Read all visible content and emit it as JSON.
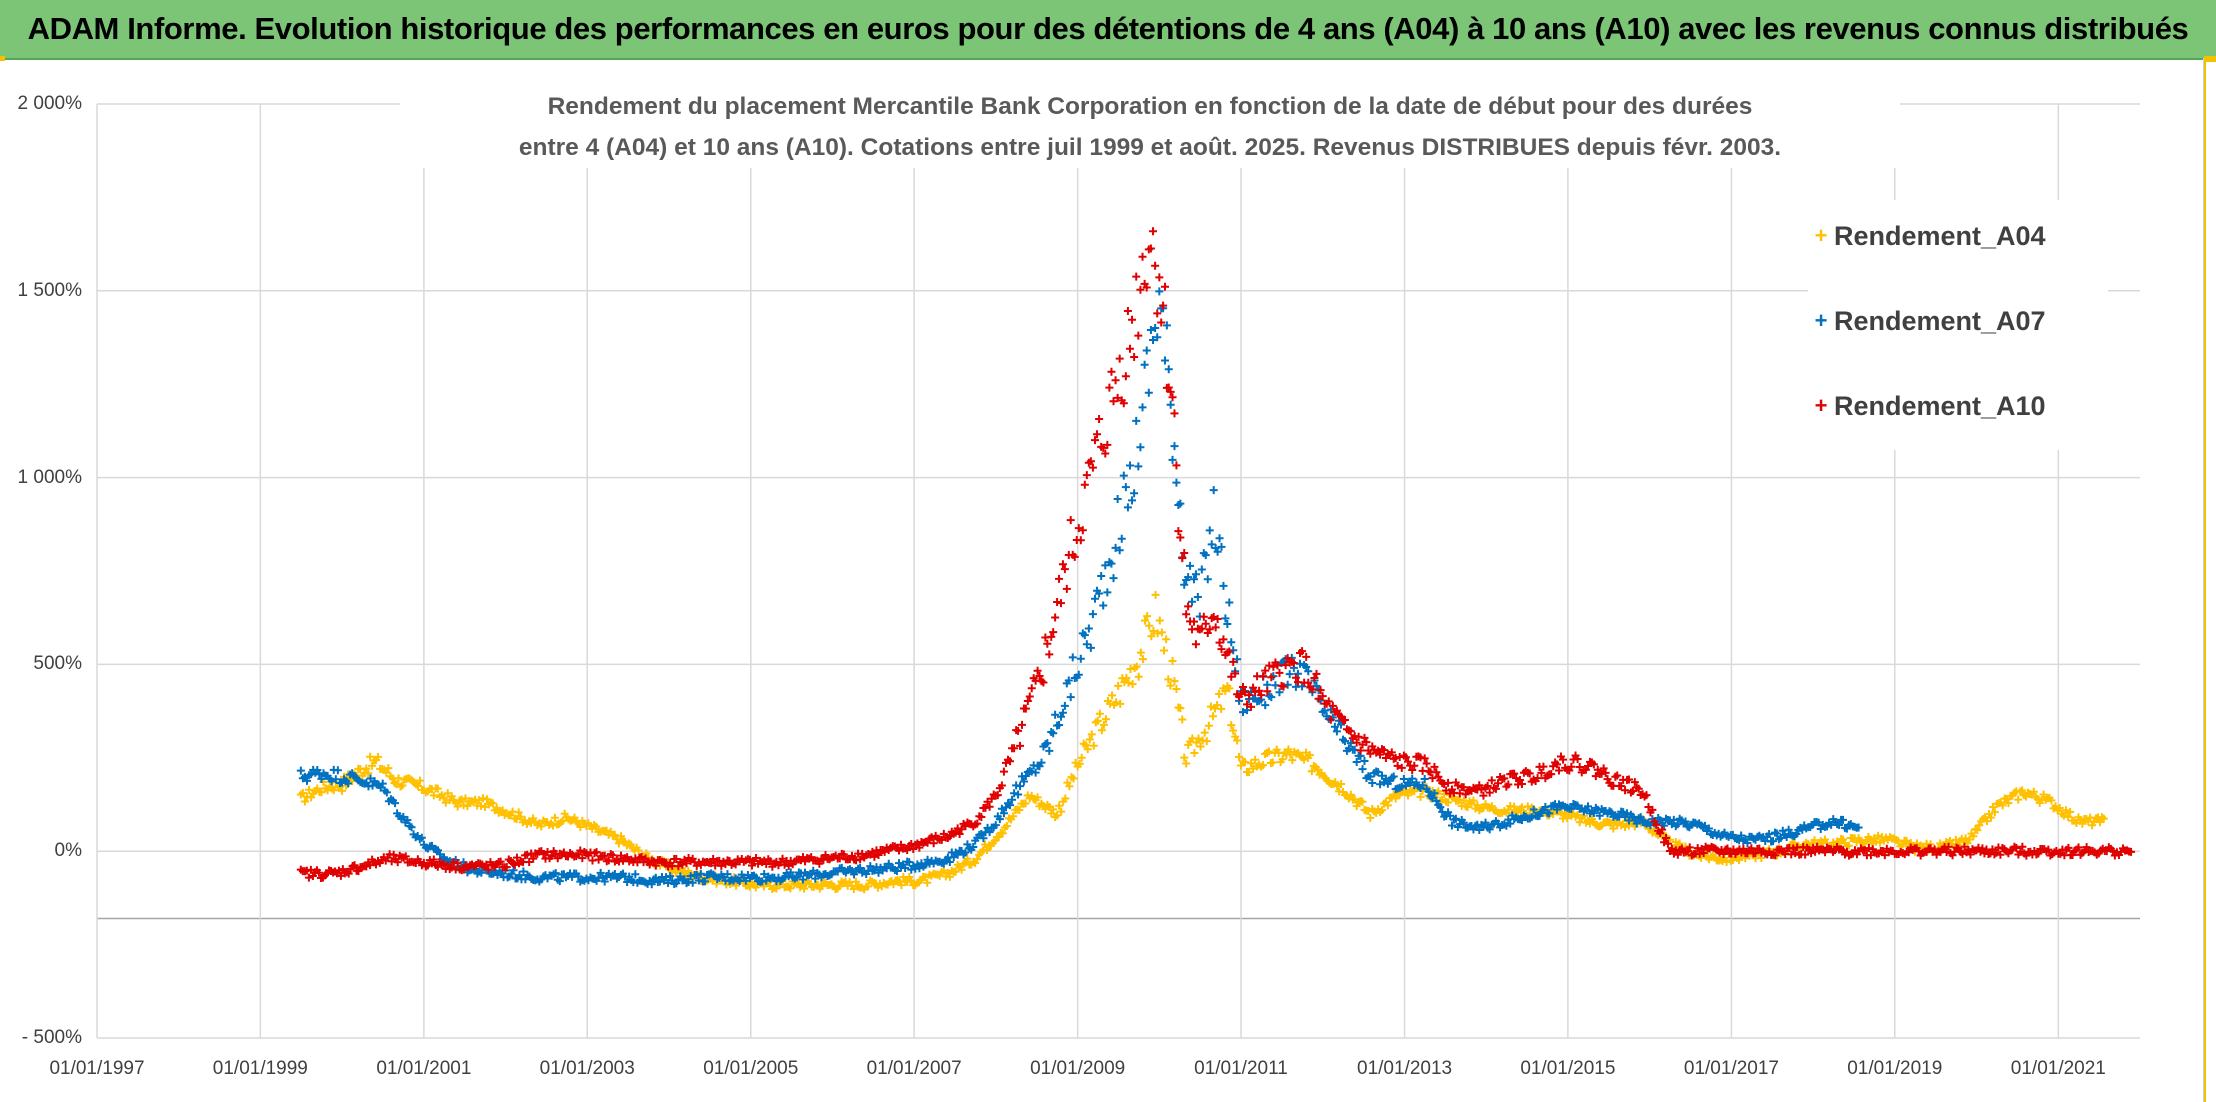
{
  "banner": {
    "title": "ADAM Informe. Evolution historique des performances en euros pour des détentions de 4 ans (A04) à 10 ans (A10) avec les revenus connus distribués"
  },
  "colors": {
    "banner_bg": "#7cc576",
    "a04": "#ffc000",
    "a07": "#0070c0",
    "a10": "#e00000"
  },
  "chart_data": {
    "type": "scatter",
    "title_line1": "Rendement du placement Mercantile Bank Corporation en fonction de la date de début pour des durées",
    "title_line2": "entre 4 (A04) et 10 ans (A10). Cotations entre juil 1999 et août. 2025. Revenus DISTRIBUES depuis févr. 2003.",
    "marker": "+",
    "x_tick_labels": [
      "01/01/1997",
      "01/01/1999",
      "01/01/2001",
      "01/01/2003",
      "01/01/2005",
      "01/01/2007",
      "01/01/2009",
      "01/01/2011",
      "01/01/2013",
      "01/01/2015",
      "01/01/2017",
      "01/01/2019",
      "01/01/2021"
    ],
    "y_tick_labels": [
      "2 000%",
      "1 500%",
      "1 000%",
      "500%",
      "0%",
      "- 500%"
    ],
    "xlim": [
      "1997-01-01",
      "2022-01-01"
    ],
    "ylim": [
      -500,
      2000
    ],
    "grid": true,
    "legend_position": "right",
    "series": [
      {
        "name": "Rendement_A04",
        "color": "#ffc000",
        "points": [
          [
            "1999-07-01",
            140
          ],
          [
            "1999-10-01",
            170
          ],
          [
            "2000-01-01",
            180
          ],
          [
            "2000-04-01",
            220
          ],
          [
            "2000-06-01",
            240
          ],
          [
            "2000-09-01",
            190
          ],
          [
            "2001-01-01",
            170
          ],
          [
            "2001-06-01",
            130
          ],
          [
            "2001-10-01",
            130
          ],
          [
            "2002-02-01",
            100
          ],
          [
            "2002-06-01",
            70
          ],
          [
            "2002-10-01",
            90
          ],
          [
            "2003-02-01",
            60
          ],
          [
            "2003-06-01",
            30
          ],
          [
            "2003-10-01",
            -20
          ],
          [
            "2004-02-01",
            -50
          ],
          [
            "2004-06-01",
            -70
          ],
          [
            "2004-10-01",
            -80
          ],
          [
            "2005-02-01",
            -90
          ],
          [
            "2005-06-01",
            -90
          ],
          [
            "2005-10-01",
            -90
          ],
          [
            "2006-02-01",
            -90
          ],
          [
            "2006-06-01",
            -90
          ],
          [
            "2006-10-01",
            -80
          ],
          [
            "2007-02-01",
            -80
          ],
          [
            "2007-06-01",
            -60
          ],
          [
            "2007-10-01",
            -20
          ],
          [
            "2008-02-01",
            60
          ],
          [
            "2008-06-01",
            150
          ],
          [
            "2008-10-01",
            100
          ],
          [
            "2009-01-01",
            230
          ],
          [
            "2009-04-01",
            330
          ],
          [
            "2009-07-01",
            420
          ],
          [
            "2009-10-01",
            520
          ],
          [
            "2009-12-15",
            640
          ],
          [
            "2010-03-01",
            470
          ],
          [
            "2010-05-01",
            250
          ],
          [
            "2010-08-01",
            330
          ],
          [
            "2010-11-01",
            430
          ],
          [
            "2011-01-01",
            220
          ],
          [
            "2011-04-01",
            240
          ],
          [
            "2011-08-01",
            260
          ],
          [
            "2011-12-01",
            230
          ],
          [
            "2012-04-01",
            170
          ],
          [
            "2012-08-01",
            100
          ],
          [
            "2012-12-01",
            150
          ],
          [
            "2013-04-01",
            160
          ],
          [
            "2013-08-01",
            140
          ],
          [
            "2013-12-01",
            120
          ],
          [
            "2014-04-01",
            110
          ],
          [
            "2014-08-01",
            110
          ],
          [
            "2014-12-01",
            100
          ],
          [
            "2015-04-01",
            80
          ],
          [
            "2015-08-01",
            70
          ],
          [
            "2015-12-01",
            80
          ],
          [
            "2016-04-01",
            20
          ],
          [
            "2016-08-01",
            -10
          ],
          [
            "2016-12-01",
            -20
          ],
          [
            "2017-04-01",
            -10
          ],
          [
            "2017-08-01",
            0
          ],
          [
            "2017-12-01",
            20
          ],
          [
            "2018-04-01",
            20
          ],
          [
            "2018-08-01",
            30
          ],
          [
            "2018-12-01",
            30
          ],
          [
            "2019-04-01",
            10
          ],
          [
            "2019-08-01",
            10
          ],
          [
            "2019-12-01",
            30
          ],
          [
            "2020-04-01",
            120
          ],
          [
            "2020-08-01",
            160
          ],
          [
            "2020-12-01",
            130
          ],
          [
            "2021-04-01",
            80
          ],
          [
            "2021-08-01",
            80
          ]
        ]
      },
      {
        "name": "Rendement_A07",
        "color": "#0070c0",
        "points": [
          [
            "1999-07-01",
            200
          ],
          [
            "1999-10-01",
            210
          ],
          [
            "2000-01-01",
            200
          ],
          [
            "2000-04-01",
            190
          ],
          [
            "2000-07-01",
            170
          ],
          [
            "2000-10-01",
            90
          ],
          [
            "2001-01-01",
            20
          ],
          [
            "2001-04-01",
            -20
          ],
          [
            "2001-08-01",
            -50
          ],
          [
            "2002-01-01",
            -60
          ],
          [
            "2002-06-01",
            -70
          ],
          [
            "2002-12-01",
            -70
          ],
          [
            "2003-06-01",
            -70
          ],
          [
            "2003-12-01",
            -80
          ],
          [
            "2004-06-01",
            -70
          ],
          [
            "2004-12-01",
            -70
          ],
          [
            "2005-06-01",
            -70
          ],
          [
            "2005-12-01",
            -60
          ],
          [
            "2006-06-01",
            -50
          ],
          [
            "2006-12-01",
            -40
          ],
          [
            "2007-06-01",
            -20
          ],
          [
            "2007-10-01",
            20
          ],
          [
            "2008-01-01",
            80
          ],
          [
            "2008-04-01",
            160
          ],
          [
            "2008-08-01",
            250
          ],
          [
            "2008-12-01",
            450
          ],
          [
            "2009-03-01",
            600
          ],
          [
            "2009-06-01",
            800
          ],
          [
            "2009-09-01",
            1000
          ],
          [
            "2009-11-15",
            1300
          ],
          [
            "2010-01-01",
            1500
          ],
          [
            "2010-03-01",
            1150
          ],
          [
            "2010-05-01",
            750
          ],
          [
            "2010-07-01",
            650
          ],
          [
            "2010-09-01",
            900
          ],
          [
            "2010-11-01",
            650
          ],
          [
            "2011-01-01",
            400
          ],
          [
            "2011-04-01",
            420
          ],
          [
            "2011-07-01",
            470
          ],
          [
            "2011-10-01",
            480
          ],
          [
            "2012-01-01",
            380
          ],
          [
            "2012-04-01",
            300
          ],
          [
            "2012-08-01",
            200
          ],
          [
            "2012-12-01",
            180
          ],
          [
            "2013-04-01",
            180
          ],
          [
            "2013-08-01",
            80
          ],
          [
            "2013-12-01",
            60
          ],
          [
            "2014-04-01",
            80
          ],
          [
            "2014-08-01",
            100
          ],
          [
            "2014-12-01",
            120
          ],
          [
            "2015-04-01",
            110
          ],
          [
            "2015-08-01",
            100
          ],
          [
            "2015-12-01",
            80
          ],
          [
            "2016-04-01",
            80
          ],
          [
            "2016-08-01",
            70
          ],
          [
            "2016-12-01",
            40
          ],
          [
            "2017-04-01",
            30
          ],
          [
            "2017-08-01",
            40
          ],
          [
            "2017-12-01",
            60
          ],
          [
            "2018-04-01",
            80
          ],
          [
            "2018-08-01",
            60
          ]
        ]
      },
      {
        "name": "Rendement_A10",
        "color": "#e00000",
        "points": [
          [
            "1999-07-01",
            -60
          ],
          [
            "1999-12-01",
            -60
          ],
          [
            "2000-04-01",
            -40
          ],
          [
            "2000-08-01",
            -20
          ],
          [
            "2001-01-01",
            -30
          ],
          [
            "2001-06-01",
            -40
          ],
          [
            "2001-12-01",
            -40
          ],
          [
            "2002-06-01",
            -10
          ],
          [
            "2002-12-01",
            -10
          ],
          [
            "2003-06-01",
            -20
          ],
          [
            "2003-12-01",
            -30
          ],
          [
            "2004-06-01",
            -30
          ],
          [
            "2004-12-01",
            -30
          ],
          [
            "2005-06-01",
            -30
          ],
          [
            "2005-12-01",
            -20
          ],
          [
            "2006-06-01",
            -10
          ],
          [
            "2006-12-01",
            10
          ],
          [
            "2007-06-01",
            40
          ],
          [
            "2007-10-01",
            80
          ],
          [
            "2008-01-01",
            150
          ],
          [
            "2008-04-01",
            280
          ],
          [
            "2008-08-01",
            500
          ],
          [
            "2008-12-01",
            800
          ],
          [
            "2009-03-01",
            1000
          ],
          [
            "2009-06-01",
            1200
          ],
          [
            "2009-09-01",
            1400
          ],
          [
            "2009-11-15",
            1650
          ],
          [
            "2010-01-01",
            1550
          ],
          [
            "2010-03-01",
            1200
          ],
          [
            "2010-05-01",
            650
          ],
          [
            "2010-07-01",
            550
          ],
          [
            "2010-09-01",
            650
          ],
          [
            "2010-11-01",
            520
          ],
          [
            "2011-01-01",
            400
          ],
          [
            "2011-04-01",
            440
          ],
          [
            "2011-07-01",
            480
          ],
          [
            "2011-10-01",
            500
          ],
          [
            "2012-01-01",
            400
          ],
          [
            "2012-04-01",
            330
          ],
          [
            "2012-08-01",
            270
          ],
          [
            "2012-12-01",
            240
          ],
          [
            "2013-04-01",
            230
          ],
          [
            "2013-08-01",
            170
          ],
          [
            "2013-12-01",
            160
          ],
          [
            "2014-04-01",
            190
          ],
          [
            "2014-08-01",
            200
          ],
          [
            "2014-12-01",
            240
          ],
          [
            "2015-04-01",
            230
          ],
          [
            "2015-08-01",
            190
          ],
          [
            "2015-12-01",
            160
          ],
          [
            "2016-04-01",
            0
          ],
          [
            "2017-01-01",
            0
          ],
          [
            "2018-01-01",
            0
          ],
          [
            "2019-01-01",
            0
          ],
          [
            "2020-01-01",
            0
          ],
          [
            "2021-01-01",
            0
          ],
          [
            "2021-12-01",
            0
          ]
        ]
      }
    ]
  }
}
